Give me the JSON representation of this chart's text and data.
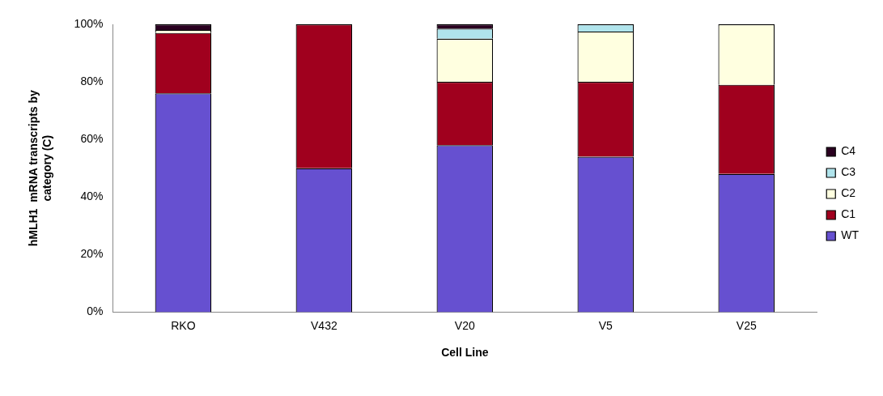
{
  "chart_data": {
    "type": "bar",
    "stacked": true,
    "xlabel": "Cell Line",
    "ylabel": "hMLH1  mRNA transcripts by category (C)",
    "categories": [
      "RKO",
      "V432",
      "V20",
      "V5",
      "V25"
    ],
    "series": [
      {
        "name": "WT",
        "color": "#6650d0",
        "values": [
          76,
          50,
          58,
          54,
          48
        ]
      },
      {
        "name": "C1",
        "color": "#a0001e",
        "values": [
          21,
          50,
          22,
          26,
          31
        ]
      },
      {
        "name": "C2",
        "color": "#ffffe0",
        "values": [
          1,
          0,
          15,
          17.5,
          21
        ]
      },
      {
        "name": "C3",
        "color": "#b0e4ec",
        "values": [
          0,
          0,
          3.5,
          2.5,
          0
        ]
      },
      {
        "name": "C4",
        "color": "#2a0020",
        "values": [
          2,
          0,
          1.5,
          0,
          0
        ]
      }
    ],
    "ylim": [
      0,
      100
    ],
    "yticks": [
      {
        "value": 0,
        "label": "0%"
      },
      {
        "value": 20,
        "label": "20%"
      },
      {
        "value": 40,
        "label": "40%"
      },
      {
        "value": 60,
        "label": "60%"
      },
      {
        "value": 80,
        "label": "80%"
      },
      {
        "value": 100,
        "label": "100%"
      }
    ],
    "grid": false,
    "legend": "right"
  }
}
